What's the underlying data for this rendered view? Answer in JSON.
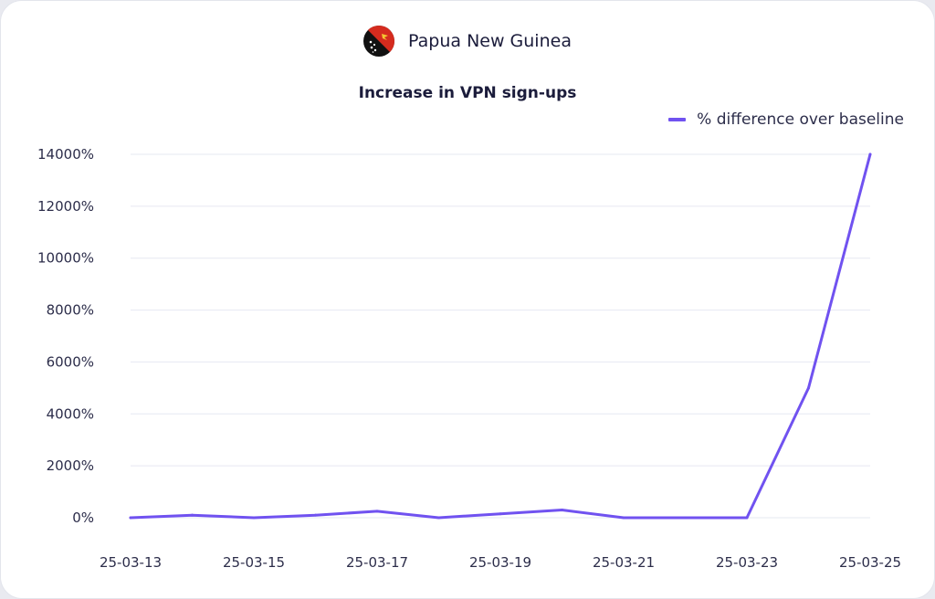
{
  "header": {
    "country": "Papua New Guinea",
    "flag_icon": "papua-new-guinea-flag-icon"
  },
  "chart_data": {
    "type": "line",
    "title": "Increase in VPN sign-ups",
    "xlabel": "",
    "ylabel": "",
    "ylim": [
      0,
      14000
    ],
    "y_ticks": [
      0,
      2000,
      4000,
      6000,
      8000,
      10000,
      12000,
      14000
    ],
    "y_tick_labels": [
      "0%",
      "2000%",
      "4000%",
      "6000%",
      "8000%",
      "10000%",
      "12000%",
      "14000%"
    ],
    "x_tick_labels": [
      "25-03-13",
      "25-03-15",
      "25-03-17",
      "25-03-19",
      "25-03-21",
      "25-03-23",
      "25-03-25"
    ],
    "legend_position": "top-right",
    "grid": true,
    "x": [
      "25-03-13",
      "25-03-14",
      "25-03-15",
      "25-03-16",
      "25-03-17",
      "25-03-18",
      "25-03-19",
      "25-03-20",
      "25-03-21",
      "25-03-22",
      "25-03-23",
      "25-03-24",
      "25-03-25"
    ],
    "series": [
      {
        "name": "% difference over baseline",
        "color": "#7052f0",
        "values": [
          0,
          100,
          0,
          100,
          250,
          0,
          150,
          300,
          0,
          0,
          0,
          5000,
          14000
        ]
      }
    ]
  }
}
